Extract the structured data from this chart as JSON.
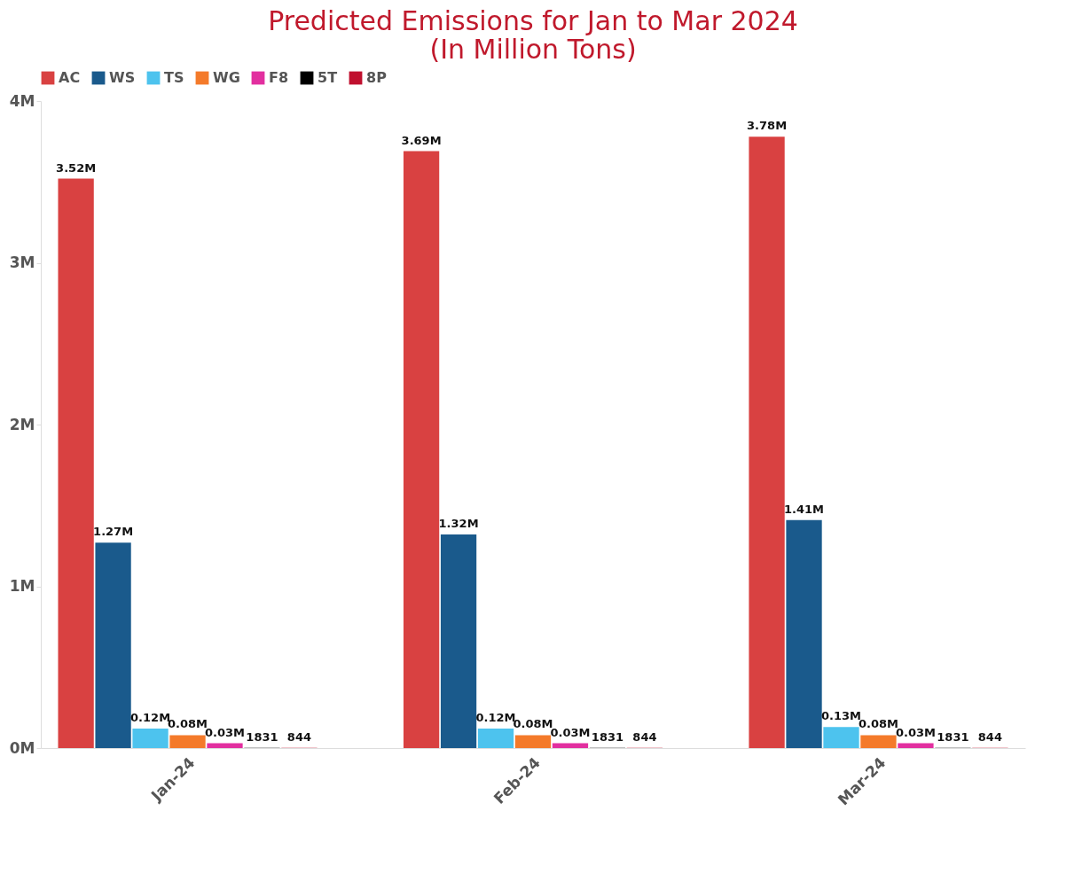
{
  "chart_data": {
    "type": "bar",
    "title": [
      "Predicted Emissions for Jan to Mar 2024",
      "(In Million Tons)"
    ],
    "categories": [
      "Jan-24",
      "Feb-24",
      "Mar-24"
    ],
    "series": [
      {
        "name": "AC",
        "color": "#d94141",
        "values": [
          3520000,
          3690000,
          3780000
        ],
        "value_labels": [
          "3.52M",
          "3.69M",
          "3.78M"
        ]
      },
      {
        "name": "WS",
        "color": "#1a5a8c",
        "values": [
          1270000,
          1320000,
          1410000
        ],
        "value_labels": [
          "1.27M",
          "1.32M",
          "1.41M"
        ]
      },
      {
        "name": "TS",
        "color": "#4dc3ee",
        "values": [
          120000,
          120000,
          130000
        ],
        "value_labels": [
          "0.12M",
          "0.12M",
          "0.13M"
        ]
      },
      {
        "name": "WG",
        "color": "#f47a2a",
        "values": [
          80000,
          80000,
          80000
        ],
        "value_labels": [
          "0.08M",
          "0.08M",
          "0.08M"
        ]
      },
      {
        "name": "F8",
        "color": "#e22f9f",
        "values": [
          30000,
          30000,
          30000
        ],
        "value_labels": [
          "0.03M",
          "0.03M",
          "0.03M"
        ]
      },
      {
        "name": "5T",
        "color": "#000000",
        "values": [
          1831,
          1831,
          1831
        ],
        "value_labels": [
          "1831",
          "1831",
          "1831"
        ]
      },
      {
        "name": "8P",
        "color": "#c0102e",
        "values": [
          844,
          844,
          844
        ],
        "value_labels": [
          "844",
          "844",
          "844"
        ]
      }
    ],
    "ylim": [
      0,
      4000000
    ],
    "yticks": [
      {
        "value": 0,
        "label": "0M"
      },
      {
        "value": 1000000,
        "label": "1M"
      },
      {
        "value": 2000000,
        "label": "2M"
      },
      {
        "value": 3000000,
        "label": "3M"
      },
      {
        "value": 4000000,
        "label": "4M"
      }
    ],
    "grid": false,
    "legend": "top"
  }
}
